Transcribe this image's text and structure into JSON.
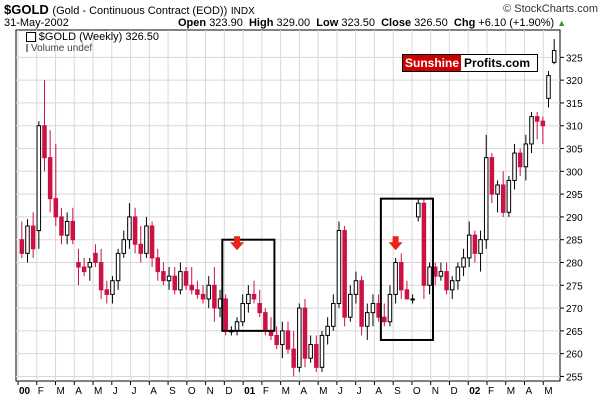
{
  "header": {
    "symbol": "$GOLD",
    "description": "(Gold - Continuous Contract (EOD))",
    "exchange": "INDX",
    "credit": "© StockCharts.com",
    "date": "31-May-2002",
    "open_label": "Open",
    "open": "323.90",
    "high_label": "High",
    "high": "329.00",
    "low_label": "Low",
    "low": "323.50",
    "close_label": "Close",
    "close": "326.50",
    "chg_label": "Chg",
    "chg": "+6.10 (+1.90%)",
    "up_arrow": "▲"
  },
  "legend": {
    "series": "$GOLD (Weekly) 326.50",
    "volume": "Volume undef"
  },
  "brand": {
    "part1": "Sunshine",
    "part2": "Profits.com"
  },
  "colors": {
    "up": "#000000",
    "down": "#cc1144",
    "grid": "#d8d8d8",
    "marker": "#e8251a",
    "bg": "#ffffff"
  },
  "chart_data": {
    "type": "candlestick",
    "title": "$GOLD (Gold - Continuous Contract (EOD))",
    "interval": "weekly",
    "ylim": [
      254,
      331
    ],
    "yticks": [
      255,
      260,
      265,
      270,
      275,
      280,
      285,
      290,
      295,
      300,
      305,
      310,
      315,
      320,
      325
    ],
    "y_axis_side": "right",
    "x_labels": [
      "00",
      "F",
      "M",
      "A",
      "M",
      "J",
      "J",
      "A",
      "S",
      "O",
      "N",
      "D",
      "01",
      "F",
      "M",
      "A",
      "M",
      "J",
      "J",
      "A",
      "S",
      "O",
      "N",
      "D",
      "02",
      "F",
      "M",
      "A",
      "M"
    ],
    "x_label_bold": [
      "00",
      "01",
      "02"
    ],
    "grid": true,
    "candles": [
      {
        "o": 285.0,
        "h": 289.0,
        "l": 281.0,
        "c": 282.0
      },
      {
        "o": 282.0,
        "h": 289.5,
        "l": 280.0,
        "c": 288.0
      },
      {
        "o": 288.0,
        "h": 291.0,
        "l": 281.0,
        "c": 283.0
      },
      {
        "o": 287.0,
        "h": 311.0,
        "l": 283.0,
        "c": 310.0
      },
      {
        "o": 310.0,
        "h": 320.0,
        "l": 300.0,
        "c": 303.0
      },
      {
        "o": 303.0,
        "h": 309.0,
        "l": 291.0,
        "c": 294.0
      },
      {
        "o": 294.0,
        "h": 306.0,
        "l": 288.0,
        "c": 290.0
      },
      {
        "o": 290.0,
        "h": 292.0,
        "l": 284.0,
        "c": 286.0
      },
      {
        "o": 286.0,
        "h": 291.0,
        "l": 284.0,
        "c": 289.0
      },
      {
        "o": 289.0,
        "h": 292.0,
        "l": 284.0,
        "c": 285.0
      },
      {
        "o": 280.0,
        "h": 283.0,
        "l": 275.0,
        "c": 279.0
      },
      {
        "o": 279.0,
        "h": 281.0,
        "l": 277.0,
        "c": 278.0
      },
      {
        "o": 279.0,
        "h": 281.0,
        "l": 276.0,
        "c": 280.0
      },
      {
        "o": 282.0,
        "h": 284.0,
        "l": 279.0,
        "c": 280.0
      },
      {
        "o": 280.0,
        "h": 283.0,
        "l": 272.0,
        "c": 274.0
      },
      {
        "o": 274.0,
        "h": 276.0,
        "l": 271.0,
        "c": 273.0
      },
      {
        "o": 273.0,
        "h": 277.0,
        "l": 271.0,
        "c": 276.0
      },
      {
        "o": 276.0,
        "h": 283.0,
        "l": 274.0,
        "c": 282.0
      },
      {
        "o": 282.0,
        "h": 287.0,
        "l": 281.0,
        "c": 285.0
      },
      {
        "o": 285.0,
        "h": 293.0,
        "l": 283.0,
        "c": 290.0
      },
      {
        "o": 290.0,
        "h": 292.0,
        "l": 282.0,
        "c": 284.0
      },
      {
        "o": 284.0,
        "h": 288.0,
        "l": 280.0,
        "c": 282.0
      },
      {
        "o": 282.0,
        "h": 290.0,
        "l": 281.0,
        "c": 288.0
      },
      {
        "o": 288.0,
        "h": 289.0,
        "l": 279.0,
        "c": 281.0
      },
      {
        "o": 281.0,
        "h": 283.0,
        "l": 276.0,
        "c": 278.0
      },
      {
        "o": 278.0,
        "h": 280.0,
        "l": 275.0,
        "c": 276.0
      },
      {
        "o": 276.0,
        "h": 279.0,
        "l": 274.0,
        "c": 277.0
      },
      {
        "o": 277.0,
        "h": 279.0,
        "l": 273.0,
        "c": 274.0
      },
      {
        "o": 274.0,
        "h": 280.0,
        "l": 273.0,
        "c": 278.0
      },
      {
        "o": 278.0,
        "h": 279.0,
        "l": 274.0,
        "c": 275.0
      },
      {
        "o": 275.0,
        "h": 279.0,
        "l": 273.0,
        "c": 274.0
      },
      {
        "o": 274.0,
        "h": 276.0,
        "l": 272.0,
        "c": 273.0
      },
      {
        "o": 273.0,
        "h": 275.0,
        "l": 271.0,
        "c": 272.0
      },
      {
        "o": 272.0,
        "h": 277.0,
        "l": 270.0,
        "c": 275.0
      },
      {
        "o": 275.0,
        "h": 279.0,
        "l": 267.0,
        "c": 270.0
      },
      {
        "o": 270.0,
        "h": 274.0,
        "l": 268.0,
        "c": 272.0
      },
      {
        "o": 272.0,
        "h": 273.0,
        "l": 264.0,
        "c": 265.0
      },
      {
        "o": 265.0,
        "h": 266.0,
        "l": 264.0,
        "c": 265.0
      },
      {
        "o": 265.0,
        "h": 268.0,
        "l": 264.0,
        "c": 267.0
      },
      {
        "o": 267.0,
        "h": 273.0,
        "l": 266.0,
        "c": 271.0
      },
      {
        "o": 271.0,
        "h": 275.0,
        "l": 269.0,
        "c": 273.0
      },
      {
        "o": 273.0,
        "h": 276.0,
        "l": 271.0,
        "c": 272.0
      },
      {
        "o": 271.0,
        "h": 274.0,
        "l": 268.0,
        "c": 269.0
      },
      {
        "o": 269.0,
        "h": 270.0,
        "l": 264.0,
        "c": 265.0
      },
      {
        "o": 265.0,
        "h": 268.0,
        "l": 263.0,
        "c": 264.0
      },
      {
        "o": 264.0,
        "h": 266.0,
        "l": 261.0,
        "c": 262.0
      },
      {
        "o": 262.0,
        "h": 267.0,
        "l": 259.0,
        "c": 265.0
      },
      {
        "o": 265.0,
        "h": 267.0,
        "l": 260.0,
        "c": 261.0
      },
      {
        "o": 261.0,
        "h": 265.0,
        "l": 255.0,
        "c": 257.0
      },
      {
        "o": 257.0,
        "h": 271.0,
        "l": 256.0,
        "c": 270.0
      },
      {
        "o": 270.0,
        "h": 272.0,
        "l": 257.0,
        "c": 259.0
      },
      {
        "o": 259.0,
        "h": 264.0,
        "l": 258.0,
        "c": 262.0
      },
      {
        "o": 262.0,
        "h": 264.0,
        "l": 256.0,
        "c": 257.0
      },
      {
        "o": 257.0,
        "h": 265.0,
        "l": 256.0,
        "c": 264.0
      },
      {
        "o": 264.0,
        "h": 268.0,
        "l": 262.0,
        "c": 266.0
      },
      {
        "o": 266.0,
        "h": 273.0,
        "l": 265.0,
        "c": 271.0
      },
      {
        "o": 271.0,
        "h": 289.0,
        "l": 270.0,
        "c": 287.0
      },
      {
        "o": 287.0,
        "h": 288.0,
        "l": 266.0,
        "c": 268.0
      },
      {
        "o": 268.0,
        "h": 275.0,
        "l": 267.0,
        "c": 273.0
      },
      {
        "o": 273.0,
        "h": 278.0,
        "l": 271.0,
        "c": 276.0
      },
      {
        "o": 276.0,
        "h": 277.0,
        "l": 264.0,
        "c": 266.0
      },
      {
        "o": 266.0,
        "h": 271.0,
        "l": 263.0,
        "c": 269.0
      },
      {
        "o": 269.0,
        "h": 273.0,
        "l": 266.0,
        "c": 271.0
      },
      {
        "o": 271.0,
        "h": 273.0,
        "l": 267.0,
        "c": 268.0
      },
      {
        "o": 268.0,
        "h": 271.0,
        "l": 266.0,
        "c": 267.0
      },
      {
        "o": 267.0,
        "h": 275.0,
        "l": 266.0,
        "c": 273.0
      },
      {
        "o": 273.0,
        "h": 281.0,
        "l": 271.0,
        "c": 280.0
      },
      {
        "o": 280.0,
        "h": 282.0,
        "l": 272.0,
        "c": 274.0
      },
      {
        "o": 274.0,
        "h": 276.0,
        "l": 272.0,
        "c": 272.0
      },
      {
        "o": 272.0,
        "h": 273.0,
        "l": 271.0,
        "c": 272.0
      },
      {
        "o": 290.0,
        "h": 294.0,
        "l": 289.0,
        "c": 293.0
      },
      {
        "o": 293.0,
        "h": 294.0,
        "l": 272.0,
        "c": 275.0
      },
      {
        "o": 275.0,
        "h": 280.0,
        "l": 273.0,
        "c": 279.0
      },
      {
        "o": 279.0,
        "h": 280.0,
        "l": 275.0,
        "c": 277.0
      },
      {
        "o": 277.0,
        "h": 280.0,
        "l": 276.0,
        "c": 278.0
      },
      {
        "o": 278.0,
        "h": 280.0,
        "l": 273.0,
        "c": 274.0
      },
      {
        "o": 274.0,
        "h": 277.0,
        "l": 272.0,
        "c": 276.0
      },
      {
        "o": 276.0,
        "h": 280.0,
        "l": 274.0,
        "c": 279.0
      },
      {
        "o": 279.0,
        "h": 283.0,
        "l": 277.0,
        "c": 281.0
      },
      {
        "o": 281.0,
        "h": 289.0,
        "l": 279.0,
        "c": 286.0
      },
      {
        "o": 286.0,
        "h": 287.0,
        "l": 280.0,
        "c": 282.0
      },
      {
        "o": 282.0,
        "h": 287.0,
        "l": 278.0,
        "c": 285.0
      },
      {
        "o": 285.0,
        "h": 308.0,
        "l": 283.0,
        "c": 303.0
      },
      {
        "o": 303.0,
        "h": 304.0,
        "l": 293.0,
        "c": 295.0
      },
      {
        "o": 295.0,
        "h": 298.0,
        "l": 291.0,
        "c": 297.0
      },
      {
        "o": 297.0,
        "h": 300.0,
        "l": 290.0,
        "c": 291.0
      },
      {
        "o": 291.0,
        "h": 299.0,
        "l": 290.0,
        "c": 298.0
      },
      {
        "o": 298.0,
        "h": 306.0,
        "l": 296.0,
        "c": 304.0
      },
      {
        "o": 304.0,
        "h": 305.0,
        "l": 299.0,
        "c": 301.0
      },
      {
        "o": 301.0,
        "h": 308.0,
        "l": 298.0,
        "c": 306.0
      },
      {
        "o": 306.0,
        "h": 313.0,
        "l": 304.0,
        "c": 312.0
      },
      {
        "o": 312.0,
        "h": 313.0,
        "l": 307.0,
        "c": 311.0
      },
      {
        "o": 311.0,
        "h": 312.0,
        "l": 306.0,
        "c": 310.0
      },
      {
        "o": 316.0,
        "h": 322.0,
        "l": 314.0,
        "c": 321.0
      },
      {
        "o": 323.9,
        "h": 329.0,
        "l": 323.5,
        "c": 326.5
      }
    ],
    "annotations": [
      {
        "type": "box",
        "x_start": 36,
        "x_end": 44,
        "y_low": 265,
        "y_high": 285
      },
      {
        "type": "arrow",
        "x": 38,
        "y": 284
      },
      {
        "type": "box",
        "x_start": 64,
        "x_end": 72,
        "y_low": 263,
        "y_high": 294
      },
      {
        "type": "arrow",
        "x": 66,
        "y": 284
      }
    ]
  }
}
